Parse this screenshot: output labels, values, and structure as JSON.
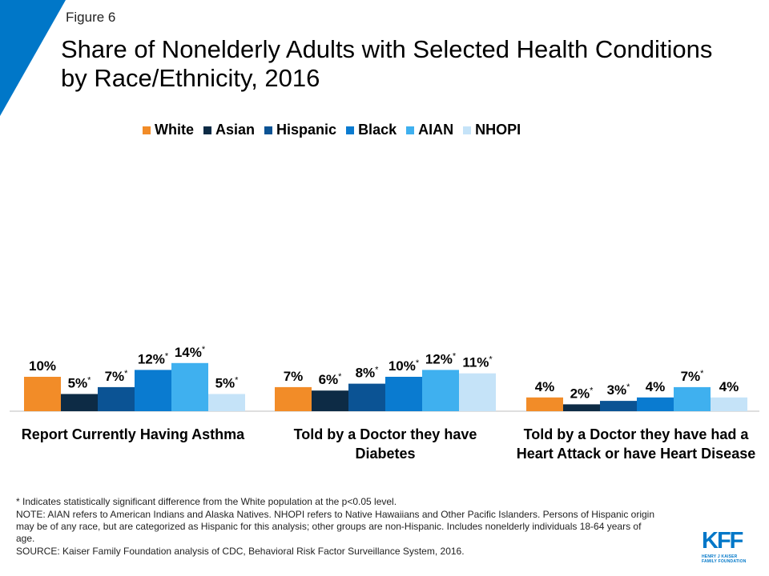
{
  "figure_label": "Figure 6",
  "title": "Share of Nonelderly Adults with Selected Health Conditions by Race/Ethnicity, 2016",
  "chart_data": {
    "type": "bar",
    "categories": [
      "Report Currently Having Asthma",
      "Told by a Doctor they have Diabetes",
      "Told by a Doctor they have had a Heart Attack or have Heart Disease"
    ],
    "series": [
      {
        "name": "White",
        "color": "#f28c28",
        "values": [
          10,
          7,
          4
        ],
        "labels": [
          "10%",
          "7%",
          "4%"
        ],
        "significant": [
          false,
          false,
          false
        ]
      },
      {
        "name": "Asian",
        "color": "#0d2b45",
        "values": [
          5,
          6,
          2
        ],
        "labels": [
          "5%",
          "6%",
          "2%"
        ],
        "significant": [
          true,
          true,
          true
        ]
      },
      {
        "name": "Hispanic",
        "color": "#0b5394",
        "values": [
          7,
          8,
          3
        ],
        "labels": [
          "7%",
          "8%",
          "3%"
        ],
        "significant": [
          true,
          true,
          true
        ]
      },
      {
        "name": "Black",
        "color": "#0a7bd0",
        "values": [
          12,
          10,
          4
        ],
        "labels": [
          "12%",
          "10%",
          "4%"
        ],
        "significant": [
          true,
          true,
          false
        ]
      },
      {
        "name": "AIAN",
        "color": "#3fb0ef",
        "values": [
          14,
          12,
          7
        ],
        "labels": [
          "14%",
          "12%",
          "7%"
        ],
        "significant": [
          true,
          true,
          true
        ]
      },
      {
        "name": "NHOPI",
        "color": "#c5e3f8",
        "values": [
          5,
          11,
          4
        ],
        "labels": [
          "5%",
          "11%",
          "4%"
        ],
        "significant": [
          true,
          true,
          false
        ]
      }
    ],
    "significance_marker": "*",
    "ylim": [
      0,
      14
    ],
    "legend_position": "top"
  },
  "footnotes": {
    "significance": "* Indicates statistically significant difference from the White population at the p<0.05 level.",
    "note": "NOTE: AIAN refers to American Indians and Alaska Natives. NHOPI refers to Native Hawaiians and Other Pacific Islanders. Persons of Hispanic origin may be of any race, but are categorized as Hispanic for this analysis; other groups are non-Hispanic. Includes nonelderly individuals 18-64 years of age.",
    "source": "SOURCE: Kaiser Family Foundation analysis of CDC, Behavioral Risk Factor Surveillance System, 2016."
  },
  "logo": {
    "mark": "KFF",
    "line1": "HENRY J KAISER",
    "line2": "FAMILY FOUNDATION",
    "color": "#0077c8"
  },
  "accent_color": "#0077c8"
}
